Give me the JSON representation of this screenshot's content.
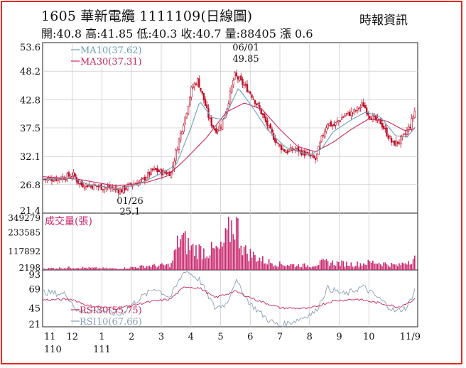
{
  "header": {
    "title": "1605 華新電纜 1111109(日線圖)",
    "quote": "開:40.8 高:41.85 低:40.3 收:40.7 量:88405 漲 0.6",
    "source": "時報資訊"
  },
  "colors": {
    "frame": "#e8281e",
    "candle": "#c0102a",
    "ma10": "#6aa0b4",
    "ma30": "#c8285a",
    "volume": "#c8286e",
    "rsi30": "#c8285a",
    "rsi10": "#8aa0b4"
  },
  "chart_data": [
    {
      "type": "candlestick",
      "panel": "price",
      "ylim": [
        21.4,
        53.6
      ],
      "y_ticks": [
        "53.6",
        "48.2",
        "42.8",
        "37.5",
        "32.1",
        "26.8",
        "21.4"
      ],
      "x_ticks": [
        "11",
        "12",
        "1",
        "2",
        "3",
        "4",
        "5",
        "6",
        "7",
        "8",
        "9",
        "10",
        "11/9"
      ],
      "x_year_labels": [
        "110",
        "111"
      ],
      "legend": [
        "MA10(37.62)",
        "MA30(37.31)"
      ],
      "annotations": [
        {
          "date": "06/01",
          "value": "49.85",
          "label": "06/01",
          "value_label": "49.85"
        },
        {
          "date": "01/26",
          "value": "25.1",
          "label": "01/26",
          "value_label": "25.1"
        }
      ],
      "close_keypoints": [
        {
          "x": 0,
          "y": 27.8
        },
        {
          "x": 0.5,
          "y": 28.0
        },
        {
          "x": 1,
          "y": 28.6
        },
        {
          "x": 1.2,
          "y": 26.9
        },
        {
          "x": 1.6,
          "y": 26.6
        },
        {
          "x": 2.0,
          "y": 26.3
        },
        {
          "x": 2.4,
          "y": 26.0
        },
        {
          "x": 2.6,
          "y": 25.6
        },
        {
          "x": 2.9,
          "y": 26.7
        },
        {
          "x": 3.3,
          "y": 27.4
        },
        {
          "x": 3.7,
          "y": 29.6
        },
        {
          "x": 4.0,
          "y": 29.1
        },
        {
          "x": 4.3,
          "y": 29.0
        },
        {
          "x": 4.6,
          "y": 36.0
        },
        {
          "x": 4.8,
          "y": 40.0
        },
        {
          "x": 5.0,
          "y": 45.0
        },
        {
          "x": 5.2,
          "y": 46.5
        },
        {
          "x": 5.4,
          "y": 43.0
        },
        {
          "x": 5.6,
          "y": 39.0
        },
        {
          "x": 5.8,
          "y": 37.0
        },
        {
          "x": 6.0,
          "y": 38.0
        },
        {
          "x": 6.2,
          "y": 41.5
        },
        {
          "x": 6.45,
          "y": 47.5
        },
        {
          "x": 6.7,
          "y": 46.0
        },
        {
          "x": 7.0,
          "y": 44.0
        },
        {
          "x": 7.3,
          "y": 41.0
        },
        {
          "x": 7.6,
          "y": 37.5
        },
        {
          "x": 7.9,
          "y": 34.5
        },
        {
          "x": 8.2,
          "y": 33.0
        },
        {
          "x": 8.5,
          "y": 33.5
        },
        {
          "x": 8.9,
          "y": 32.5
        },
        {
          "x": 9.2,
          "y": 31.5
        },
        {
          "x": 9.4,
          "y": 35.5
        },
        {
          "x": 9.6,
          "y": 38.5
        },
        {
          "x": 9.8,
          "y": 37.8
        },
        {
          "x": 10.0,
          "y": 39.0
        },
        {
          "x": 10.2,
          "y": 40.0
        },
        {
          "x": 10.5,
          "y": 40.5
        },
        {
          "x": 10.8,
          "y": 42.0
        },
        {
          "x": 11.0,
          "y": 40.0
        },
        {
          "x": 11.2,
          "y": 39.0
        },
        {
          "x": 11.4,
          "y": 38.5
        },
        {
          "x": 11.6,
          "y": 36.5
        },
        {
          "x": 11.8,
          "y": 34.5
        },
        {
          "x": 12.0,
          "y": 34.8
        },
        {
          "x": 12.2,
          "y": 36.0
        },
        {
          "x": 12.4,
          "y": 38.0
        },
        {
          "x": 12.55,
          "y": 40.7
        }
      ],
      "ma10_keypoints": [
        {
          "x": 0,
          "y": 27.9
        },
        {
          "x": 1,
          "y": 28.0
        },
        {
          "x": 1.5,
          "y": 26.9
        },
        {
          "x": 2.5,
          "y": 26.0
        },
        {
          "x": 3.2,
          "y": 26.8
        },
        {
          "x": 4.0,
          "y": 28.9
        },
        {
          "x": 4.5,
          "y": 30.5
        },
        {
          "x": 5.0,
          "y": 37.5
        },
        {
          "x": 5.3,
          "y": 42.5
        },
        {
          "x": 5.7,
          "y": 39.5
        },
        {
          "x": 6.1,
          "y": 39.0
        },
        {
          "x": 6.6,
          "y": 45.0
        },
        {
          "x": 7.0,
          "y": 42.0
        },
        {
          "x": 7.6,
          "y": 37.0
        },
        {
          "x": 8.2,
          "y": 33.8
        },
        {
          "x": 9.0,
          "y": 32.4
        },
        {
          "x": 9.4,
          "y": 33.5
        },
        {
          "x": 9.8,
          "y": 36.8
        },
        {
          "x": 10.4,
          "y": 39.0
        },
        {
          "x": 10.9,
          "y": 40.5
        },
        {
          "x": 11.4,
          "y": 39.5
        },
        {
          "x": 11.9,
          "y": 36.0
        },
        {
          "x": 12.3,
          "y": 35.8
        },
        {
          "x": 12.55,
          "y": 37.6
        }
      ],
      "ma30_keypoints": [
        {
          "x": 0,
          "y": 28.3
        },
        {
          "x": 1.2,
          "y": 27.8
        },
        {
          "x": 2.5,
          "y": 26.5
        },
        {
          "x": 3.5,
          "y": 27.2
        },
        {
          "x": 4.2,
          "y": 28.4
        },
        {
          "x": 4.8,
          "y": 31.5
        },
        {
          "x": 5.5,
          "y": 35.5
        },
        {
          "x": 6.2,
          "y": 40.5
        },
        {
          "x": 6.8,
          "y": 42.2
        },
        {
          "x": 7.4,
          "y": 41.0
        },
        {
          "x": 8.0,
          "y": 37.2
        },
        {
          "x": 8.6,
          "y": 34.0
        },
        {
          "x": 9.2,
          "y": 33.0
        },
        {
          "x": 9.8,
          "y": 34.8
        },
        {
          "x": 10.4,
          "y": 37.2
        },
        {
          "x": 11.0,
          "y": 39.2
        },
        {
          "x": 11.6,
          "y": 38.8
        },
        {
          "x": 12.2,
          "y": 37.0
        },
        {
          "x": 12.55,
          "y": 37.3
        }
      ]
    },
    {
      "type": "bar",
      "panel": "volume",
      "title": "成交量(張)",
      "ylim": [
        0,
        349279
      ],
      "y_ticks": [
        "349279",
        "233585",
        "117892",
        "2198"
      ],
      "keypoints": [
        {
          "x": 0,
          "y": 10000
        },
        {
          "x": 1,
          "y": 18000
        },
        {
          "x": 2.5,
          "y": 9000
        },
        {
          "x": 3.5,
          "y": 28000
        },
        {
          "x": 4.3,
          "y": 35000
        },
        {
          "x": 4.6,
          "y": 230000
        },
        {
          "x": 5.0,
          "y": 150000
        },
        {
          "x": 5.5,
          "y": 130000
        },
        {
          "x": 6.0,
          "y": 140000
        },
        {
          "x": 6.45,
          "y": 349000
        },
        {
          "x": 6.8,
          "y": 130000
        },
        {
          "x": 7.5,
          "y": 60000
        },
        {
          "x": 8.0,
          "y": 40000
        },
        {
          "x": 9.0,
          "y": 30000
        },
        {
          "x": 9.5,
          "y": 55000
        },
        {
          "x": 10.5,
          "y": 40000
        },
        {
          "x": 11.2,
          "y": 55000
        },
        {
          "x": 12.0,
          "y": 30000
        },
        {
          "x": 12.55,
          "y": 88405
        }
      ]
    },
    {
      "type": "line",
      "panel": "rsi",
      "ylim": [
        21,
        93
      ],
      "y_ticks": [
        "93",
        "69",
        "45",
        "21"
      ],
      "legend": [
        "RSI30(55.75)",
        "RSI10(67.66)"
      ],
      "rsi30_keypoints": [
        {
          "x": 0,
          "y": 55
        },
        {
          "x": 1,
          "y": 56
        },
        {
          "x": 1.5,
          "y": 48
        },
        {
          "x": 2.5,
          "y": 44
        },
        {
          "x": 3.5,
          "y": 52
        },
        {
          "x": 4.3,
          "y": 56
        },
        {
          "x": 4.8,
          "y": 72
        },
        {
          "x": 5.3,
          "y": 70
        },
        {
          "x": 5.8,
          "y": 58
        },
        {
          "x": 6.5,
          "y": 66
        },
        {
          "x": 7.2,
          "y": 55
        },
        {
          "x": 8.0,
          "y": 45
        },
        {
          "x": 9.0,
          "y": 44
        },
        {
          "x": 9.8,
          "y": 54
        },
        {
          "x": 10.6,
          "y": 56
        },
        {
          "x": 11.5,
          "y": 50
        },
        {
          "x": 12.0,
          "y": 46
        },
        {
          "x": 12.55,
          "y": 55.75
        }
      ],
      "rsi10_keypoints": [
        {
          "x": 0,
          "y": 65
        },
        {
          "x": 0.8,
          "y": 62
        },
        {
          "x": 1.2,
          "y": 40
        },
        {
          "x": 2.0,
          "y": 42
        },
        {
          "x": 2.6,
          "y": 36
        },
        {
          "x": 3.2,
          "y": 55
        },
        {
          "x": 3.8,
          "y": 70
        },
        {
          "x": 4.3,
          "y": 58
        },
        {
          "x": 4.8,
          "y": 93
        },
        {
          "x": 5.3,
          "y": 80
        },
        {
          "x": 5.8,
          "y": 45
        },
        {
          "x": 6.2,
          "y": 50
        },
        {
          "x": 6.5,
          "y": 80
        },
        {
          "x": 7.0,
          "y": 50
        },
        {
          "x": 7.6,
          "y": 30
        },
        {
          "x": 8.0,
          "y": 22
        },
        {
          "x": 8.6,
          "y": 30
        },
        {
          "x": 9.2,
          "y": 40
        },
        {
          "x": 9.6,
          "y": 70
        },
        {
          "x": 10.2,
          "y": 62
        },
        {
          "x": 10.8,
          "y": 72
        },
        {
          "x": 11.4,
          "y": 55
        },
        {
          "x": 11.9,
          "y": 40
        },
        {
          "x": 12.3,
          "y": 46
        },
        {
          "x": 12.55,
          "y": 67.66
        }
      ]
    }
  ]
}
